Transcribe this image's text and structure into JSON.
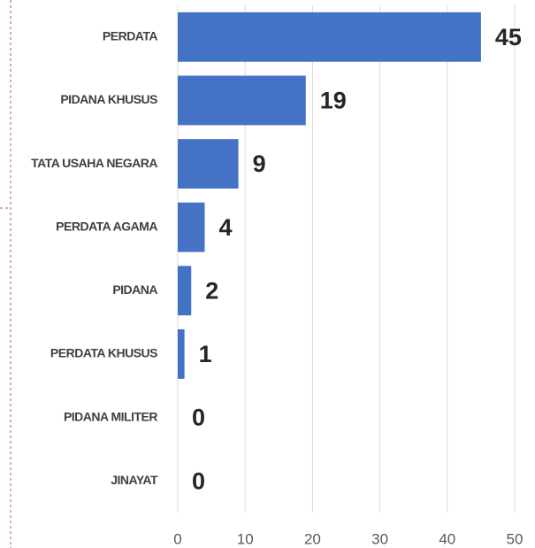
{
  "chart_data": {
    "type": "bar",
    "orientation": "horizontal",
    "categories": [
      "PERDATA",
      "PIDANA KHUSUS",
      "TATA USAHA NEGARA",
      "PERDATA AGAMA",
      "PIDANA",
      "PERDATA KHUSUS",
      "PIDANA MILITER",
      "JINAYAT"
    ],
    "values": [
      45,
      19,
      9,
      4,
      2,
      1,
      0,
      0
    ],
    "color": "#4472c4",
    "xlim": [
      0,
      50
    ],
    "xticks": [
      0,
      10,
      20,
      30,
      40,
      50
    ],
    "grid": true
  }
}
